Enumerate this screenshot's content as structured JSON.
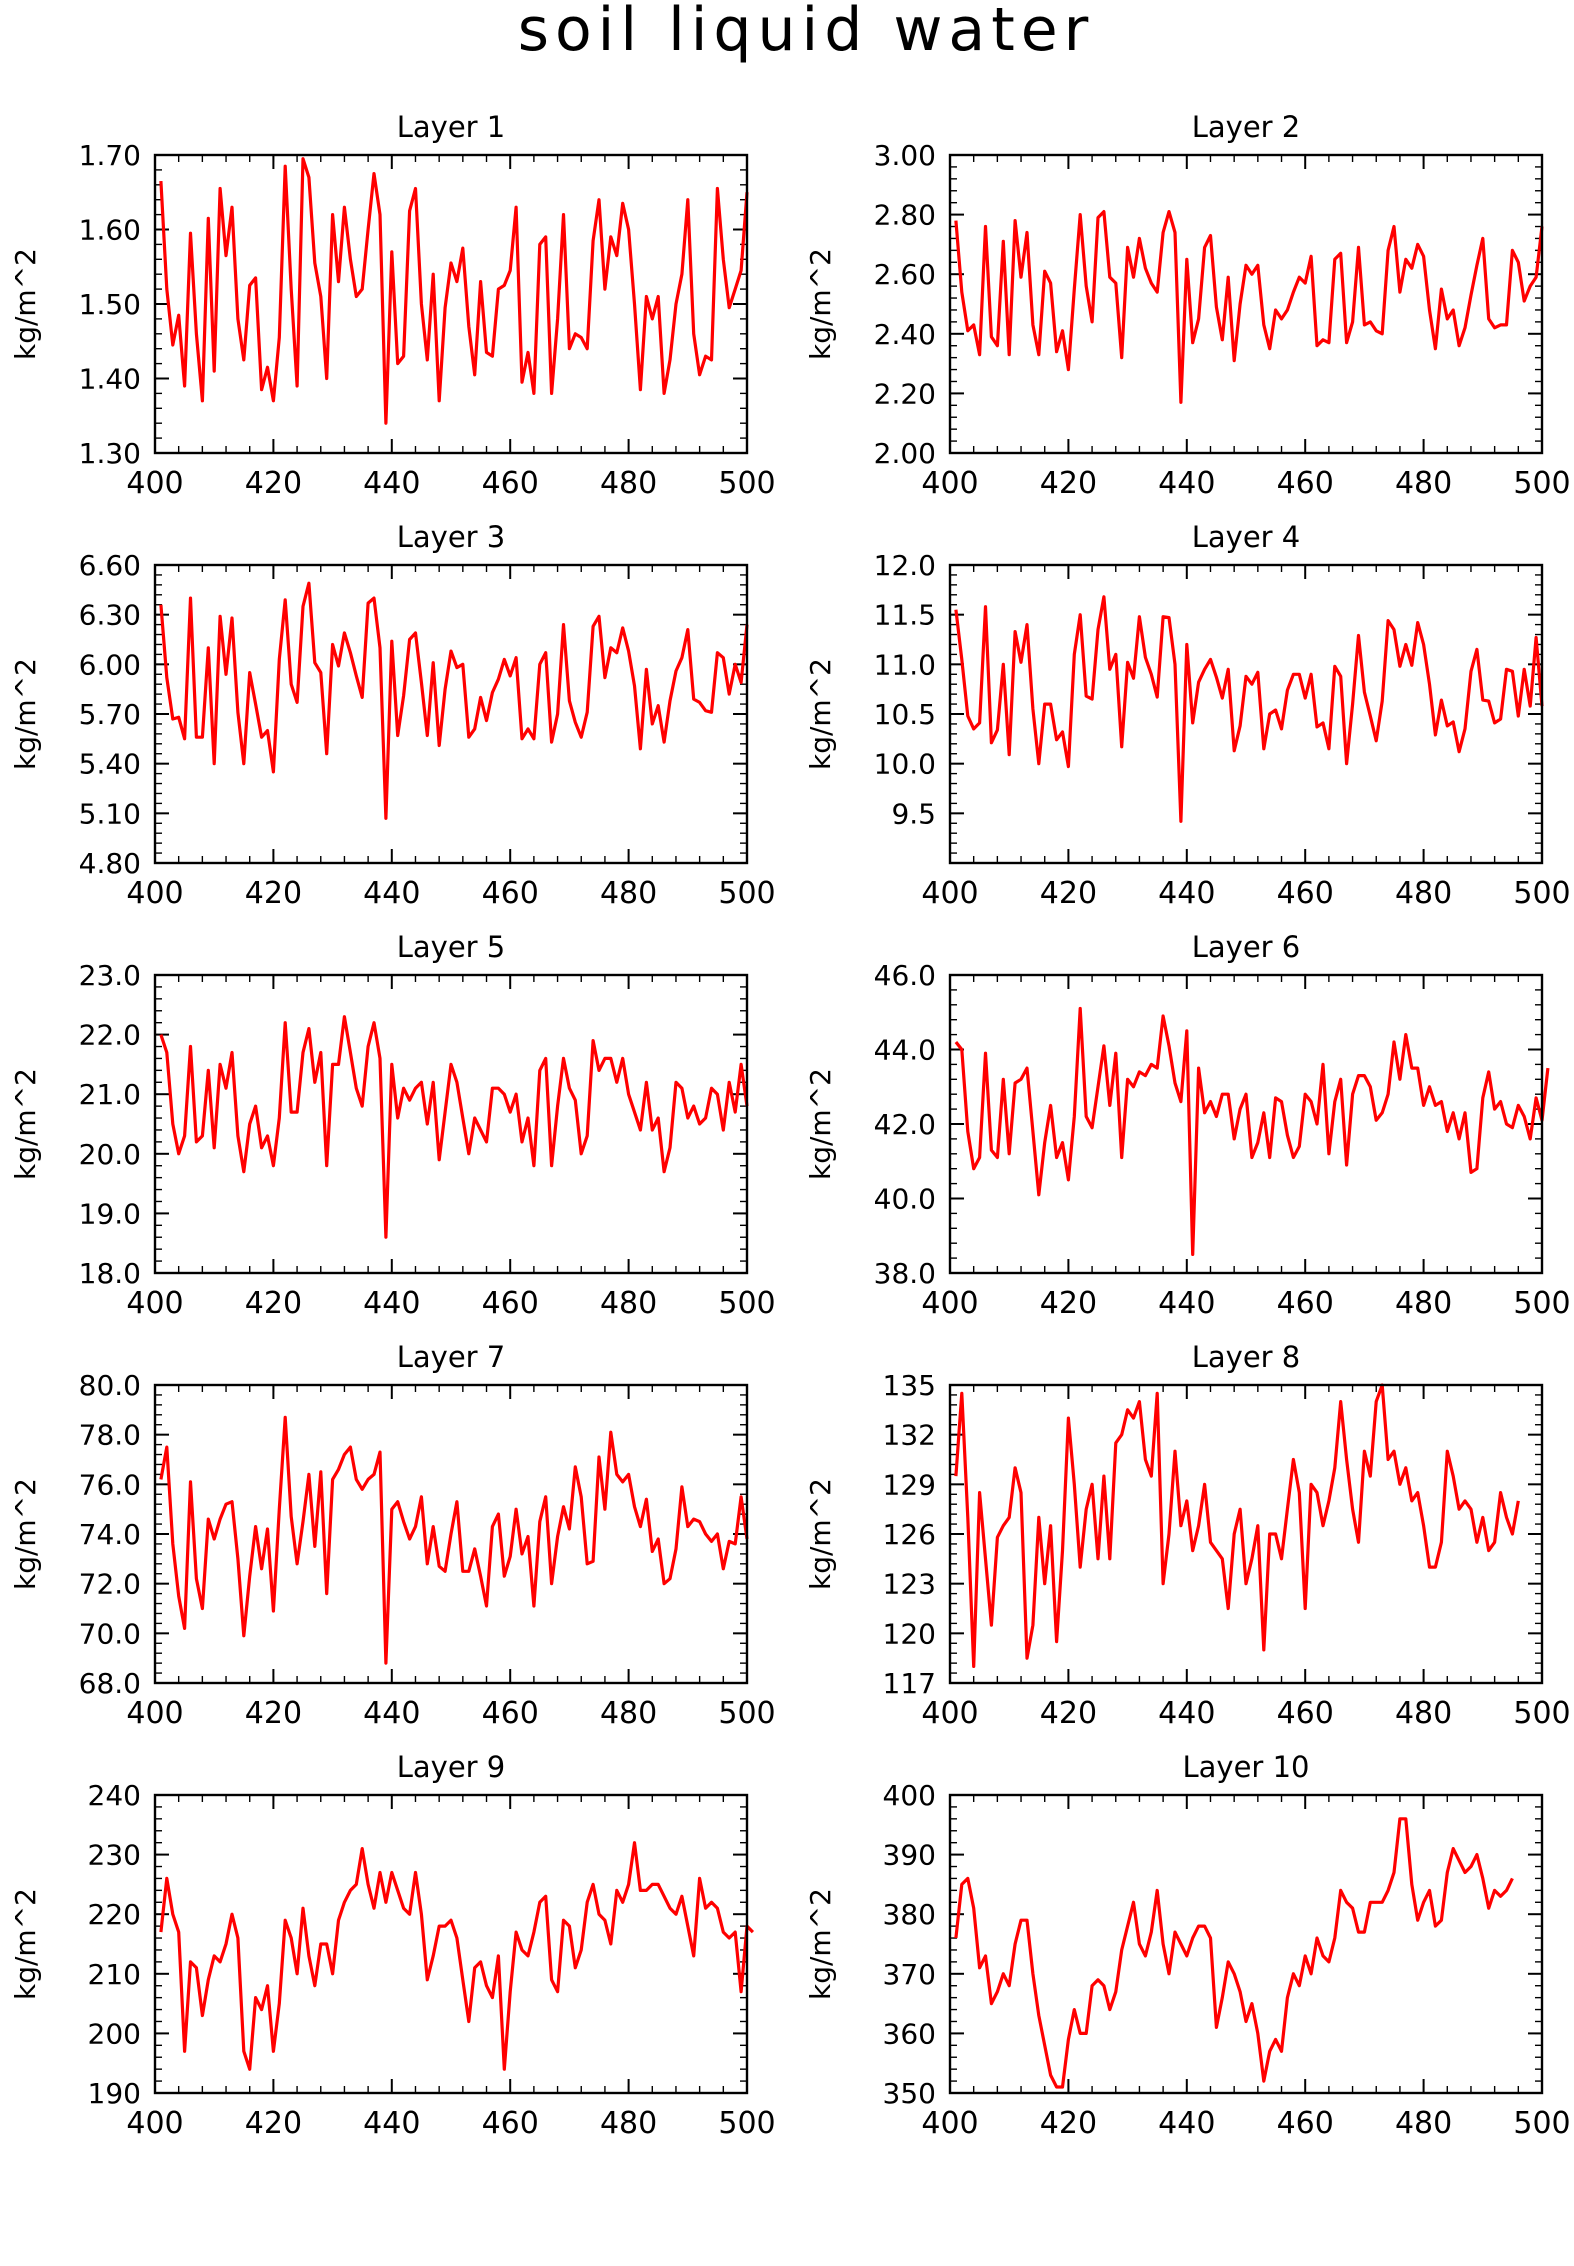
{
  "figure": {
    "title": "soil liquid water"
  },
  "colors": {
    "line": "#ff0000",
    "axis": "#000000",
    "background": "#ffffff"
  },
  "chart_data": [
    {
      "type": "line",
      "title": "Layer 1",
      "ylabel": "kg/m^2",
      "xlabel": "",
      "xlim": [
        400,
        500
      ],
      "ylim": [
        1.3,
        1.7
      ],
      "xticks": [
        400,
        420,
        440,
        460,
        480,
        500
      ],
      "yticks": [
        "1.30",
        "1.40",
        "1.50",
        "1.60",
        "1.70"
      ],
      "x_start": 401,
      "values": [
        1.665,
        1.52,
        1.445,
        1.485,
        1.39,
        1.595,
        1.46,
        1.37,
        1.615,
        1.41,
        1.655,
        1.565,
        1.63,
        1.48,
        1.425,
        1.525,
        1.535,
        1.385,
        1.415,
        1.37,
        1.455,
        1.685,
        1.52,
        1.39,
        1.695,
        1.67,
        1.555,
        1.51,
        1.4,
        1.62,
        1.53,
        1.63,
        1.56,
        1.51,
        1.52,
        1.6,
        1.675,
        1.62,
        1.34,
        1.57,
        1.42,
        1.43,
        1.625,
        1.655,
        1.5,
        1.425,
        1.54,
        1.37,
        1.495,
        1.555,
        1.53,
        1.575,
        1.47,
        1.405,
        1.53,
        1.435,
        1.43,
        1.52,
        1.525,
        1.545,
        1.63,
        1.395,
        1.435,
        1.38,
        1.58,
        1.59,
        1.38,
        1.48,
        1.62,
        1.44,
        1.46,
        1.455,
        1.44,
        1.585,
        1.64,
        1.52,
        1.59,
        1.565,
        1.635,
        1.6,
        1.5,
        1.385,
        1.51,
        1.48,
        1.51,
        1.38,
        1.425,
        1.5,
        1.54,
        1.64,
        1.46,
        1.405,
        1.43,
        1.425,
        1.655,
        1.56,
        1.495,
        1.52,
        1.545,
        1.65
      ]
    },
    {
      "type": "line",
      "title": "Layer 2",
      "ylabel": "kg/m^2",
      "xlabel": "",
      "xlim": [
        400,
        500
      ],
      "ylim": [
        2.0,
        3.0
      ],
      "xticks": [
        400,
        420,
        440,
        460,
        480,
        500
      ],
      "yticks": [
        "2.00",
        "2.20",
        "2.40",
        "2.60",
        "2.80",
        "3.00"
      ],
      "x_start": 401,
      "values": [
        2.78,
        2.54,
        2.41,
        2.43,
        2.33,
        2.76,
        2.39,
        2.36,
        2.71,
        2.33,
        2.78,
        2.59,
        2.74,
        2.43,
        2.33,
        2.61,
        2.57,
        2.34,
        2.41,
        2.28,
        2.55,
        2.8,
        2.56,
        2.44,
        2.79,
        2.81,
        2.59,
        2.57,
        2.32,
        2.69,
        2.59,
        2.72,
        2.62,
        2.57,
        2.54,
        2.74,
        2.81,
        2.74,
        2.17,
        2.65,
        2.37,
        2.45,
        2.69,
        2.73,
        2.49,
        2.38,
        2.59,
        2.31,
        2.5,
        2.63,
        2.6,
        2.63,
        2.43,
        2.35,
        2.48,
        2.45,
        2.48,
        2.54,
        2.59,
        2.57,
        2.66,
        2.36,
        2.38,
        2.37,
        2.65,
        2.67,
        2.37,
        2.44,
        2.69,
        2.43,
        2.44,
        2.41,
        2.4,
        2.68,
        2.76,
        2.54,
        2.65,
        2.62,
        2.7,
        2.66,
        2.48,
        2.35,
        2.55,
        2.45,
        2.48,
        2.36,
        2.42,
        2.53,
        2.63,
        2.72,
        2.45,
        2.42,
        2.43,
        2.43,
        2.68,
        2.64,
        2.51,
        2.56,
        2.59,
        2.76
      ]
    },
    {
      "type": "line",
      "title": "Layer 3",
      "ylabel": "kg/m^2",
      "xlabel": "",
      "xlim": [
        400,
        500
      ],
      "ylim": [
        4.8,
        6.6
      ],
      "xticks": [
        400,
        420,
        440,
        460,
        480,
        500
      ],
      "yticks": [
        "4.80",
        "5.10",
        "5.40",
        "5.70",
        "6.00",
        "6.30",
        "6.60"
      ],
      "x_start": 401,
      "values": [
        6.36,
        5.92,
        5.67,
        5.68,
        5.55,
        6.4,
        5.56,
        5.56,
        6.1,
        5.4,
        6.29,
        5.94,
        6.28,
        5.71,
        5.4,
        5.95,
        5.76,
        5.56,
        5.6,
        5.35,
        6.03,
        6.39,
        5.88,
        5.77,
        6.35,
        6.49,
        6.01,
        5.95,
        5.46,
        6.12,
        5.99,
        6.19,
        6.07,
        5.93,
        5.8,
        6.37,
        6.4,
        6.1,
        5.07,
        6.14,
        5.57,
        5.81,
        6.15,
        6.19,
        5.89,
        5.57,
        6.01,
        5.51,
        5.85,
        6.08,
        5.98,
        6.0,
        5.56,
        5.61,
        5.8,
        5.66,
        5.83,
        5.91,
        6.03,
        5.93,
        6.04,
        5.55,
        5.61,
        5.55,
        6.0,
        6.07,
        5.53,
        5.7,
        6.24,
        5.78,
        5.65,
        5.56,
        5.71,
        6.23,
        6.29,
        5.92,
        6.1,
        6.07,
        6.22,
        6.08,
        5.87,
        5.49,
        5.97,
        5.64,
        5.75,
        5.53,
        5.78,
        5.96,
        6.04,
        6.21,
        5.79,
        5.77,
        5.72,
        5.71,
        6.07,
        6.04,
        5.82,
        6.0,
        5.89,
        6.24
      ]
    },
    {
      "type": "line",
      "title": "Layer 4",
      "ylabel": "kg/m^2",
      "xlabel": "",
      "xlim": [
        400,
        500
      ],
      "ylim": [
        9.0,
        12.0
      ],
      "xticks": [
        400,
        420,
        440,
        460,
        480,
        500
      ],
      "yticks": [
        "9.5",
        "10.0",
        "10.5",
        "11.0",
        "11.5",
        "12.0"
      ],
      "x_start": 401,
      "values": [
        11.55,
        11.05,
        10.48,
        10.35,
        10.41,
        11.58,
        10.21,
        10.34,
        11.0,
        10.09,
        11.33,
        11.02,
        11.4,
        10.55,
        10.0,
        10.6,
        10.6,
        10.24,
        10.32,
        9.97,
        11.1,
        11.5,
        10.68,
        10.65,
        11.35,
        11.68,
        10.95,
        11.1,
        10.17,
        11.02,
        10.86,
        11.48,
        11.07,
        10.9,
        10.67,
        11.48,
        11.47,
        11.0,
        9.42,
        11.2,
        10.41,
        10.82,
        10.95,
        11.05,
        10.87,
        10.66,
        10.95,
        10.13,
        10.38,
        10.88,
        10.8,
        10.92,
        10.15,
        10.5,
        10.54,
        10.35,
        10.74,
        10.9,
        10.9,
        10.66,
        10.9,
        10.37,
        10.41,
        10.15,
        10.98,
        10.88,
        10.0,
        10.6,
        11.29,
        10.72,
        10.48,
        10.23,
        10.63,
        11.44,
        11.35,
        10.98,
        11.2,
        10.99,
        11.42,
        11.2,
        10.8,
        10.29,
        10.64,
        10.38,
        10.42,
        10.12,
        10.35,
        10.93,
        11.15,
        10.64,
        10.63,
        10.41,
        10.45,
        10.95,
        10.93,
        10.48,
        10.95,
        10.58,
        11.27,
        10.58
      ]
    },
    {
      "type": "line",
      "title": "Layer 5",
      "ylabel": "kg/m^2",
      "xlabel": "",
      "xlim": [
        400,
        500
      ],
      "ylim": [
        18.0,
        23.0
      ],
      "xticks": [
        400,
        420,
        440,
        460,
        480,
        500
      ],
      "yticks": [
        "18.0",
        "19.0",
        "20.0",
        "21.0",
        "22.0",
        "23.0"
      ],
      "x_start": 401,
      "values": [
        22.0,
        21.7,
        20.5,
        20.0,
        20.3,
        21.8,
        20.2,
        20.3,
        21.4,
        20.1,
        21.5,
        21.1,
        21.7,
        20.3,
        19.7,
        20.5,
        20.8,
        20.1,
        20.3,
        19.8,
        20.6,
        22.2,
        20.7,
        20.7,
        21.7,
        22.1,
        21.2,
        21.7,
        19.8,
        21.5,
        21.5,
        22.3,
        21.7,
        21.1,
        20.8,
        21.8,
        22.2,
        21.6,
        18.6,
        21.5,
        20.6,
        21.1,
        20.9,
        21.1,
        21.2,
        20.5,
        21.2,
        19.9,
        20.7,
        21.5,
        21.2,
        20.6,
        20.0,
        20.6,
        20.4,
        20.2,
        21.1,
        21.1,
        21.0,
        20.7,
        21.0,
        20.2,
        20.6,
        19.8,
        21.4,
        21.6,
        19.8,
        20.8,
        21.6,
        21.1,
        20.9,
        20.0,
        20.3,
        21.9,
        21.4,
        21.6,
        21.6,
        21.2,
        21.6,
        21.0,
        20.7,
        20.4,
        21.2,
        20.4,
        20.6,
        19.7,
        20.1,
        21.2,
        21.1,
        20.6,
        20.8,
        20.5,
        20.6,
        21.1,
        21.0,
        20.4,
        21.2,
        20.7,
        21.5,
        20.8
      ]
    },
    {
      "type": "line",
      "title": "Layer 6",
      "ylabel": "kg/m^2",
      "xlabel": "",
      "xlim": [
        400,
        500
      ],
      "ylim": [
        38.0,
        46.0
      ],
      "xticks": [
        400,
        420,
        440,
        460,
        480,
        500
      ],
      "yticks": [
        "38.0",
        "40.0",
        "42.0",
        "44.0",
        "46.0"
      ],
      "x_start": 401,
      "values": [
        44.2,
        44.0,
        41.8,
        40.8,
        41.1,
        43.9,
        41.3,
        41.1,
        43.2,
        41.2,
        43.1,
        43.2,
        43.5,
        41.8,
        40.1,
        41.5,
        42.5,
        41.1,
        41.5,
        40.5,
        42.2,
        45.1,
        42.2,
        41.9,
        43.0,
        44.1,
        42.5,
        43.9,
        41.1,
        43.2,
        43.0,
        43.4,
        43.3,
        43.6,
        43.5,
        44.9,
        44.1,
        43.1,
        42.6,
        44.5,
        38.5,
        43.5,
        42.3,
        42.6,
        42.2,
        42.8,
        42.8,
        41.6,
        42.4,
        42.8,
        41.1,
        41.5,
        42.3,
        41.1,
        42.7,
        42.6,
        41.7,
        41.1,
        41.4,
        42.8,
        42.6,
        42.0,
        43.6,
        41.2,
        42.6,
        43.2,
        40.9,
        42.8,
        43.3,
        43.3,
        43.0,
        42.1,
        42.3,
        42.8,
        44.2,
        43.2,
        44.4,
        43.5,
        43.5,
        42.5,
        43.0,
        42.5,
        42.6,
        41.8,
        42.3,
        41.6,
        42.3,
        40.7,
        40.8,
        42.7,
        43.4,
        42.4,
        42.6,
        42.0,
        41.9,
        42.5,
        42.2,
        41.6,
        42.7,
        42.1,
        43.5
      ]
    },
    {
      "type": "line",
      "title": "Layer 7",
      "ylabel": "kg/m^2",
      "xlabel": "",
      "xlim": [
        400,
        500
      ],
      "ylim": [
        68.0,
        80.0
      ],
      "xticks": [
        400,
        420,
        440,
        460,
        480,
        500
      ],
      "yticks": [
        "68.0",
        "70.0",
        "72.0",
        "74.0",
        "76.0",
        "78.0",
        "80.0"
      ],
      "x_start": 401,
      "values": [
        76.2,
        77.5,
        73.6,
        71.5,
        70.2,
        76.1,
        72.2,
        71.0,
        74.6,
        73.8,
        74.6,
        75.2,
        75.3,
        73.0,
        69.9,
        72.3,
        74.3,
        72.6,
        74.2,
        70.9,
        75.0,
        78.7,
        74.7,
        72.8,
        74.5,
        76.4,
        73.5,
        76.5,
        71.6,
        76.2,
        76.6,
        77.2,
        77.5,
        76.2,
        75.8,
        76.2,
        76.4,
        77.3,
        68.8,
        75.0,
        75.3,
        74.5,
        73.8,
        74.3,
        75.5,
        72.8,
        74.3,
        72.7,
        72.5,
        74.0,
        75.3,
        72.5,
        72.5,
        73.4,
        72.3,
        71.1,
        74.3,
        74.8,
        72.3,
        73.1,
        75.0,
        73.2,
        73.9,
        71.1,
        74.5,
        75.5,
        72.0,
        73.9,
        75.1,
        74.2,
        76.7,
        75.5,
        72.8,
        72.9,
        77.1,
        75.0,
        78.1,
        76.4,
        76.1,
        76.4,
        75.1,
        74.3,
        75.4,
        73.3,
        73.8,
        72.0,
        72.2,
        73.4,
        75.9,
        74.3,
        74.6,
        74.5,
        74.0,
        73.7,
        74.0,
        72.6,
        73.7,
        73.6,
        75.5,
        73.8
      ]
    },
    {
      "type": "line",
      "title": "Layer 8",
      "ylabel": "kg/m^2",
      "xlabel": "",
      "xlim": [
        400,
        500
      ],
      "ylim": [
        117,
        135
      ],
      "xticks": [
        400,
        420,
        440,
        460,
        480,
        500
      ],
      "yticks": [
        "117",
        "120",
        "123",
        "126",
        "129",
        "132",
        "135"
      ],
      "x_start": 401,
      "values": [
        129.5,
        134.5,
        127.0,
        118.0,
        128.5,
        124.5,
        120.5,
        125.8,
        126.5,
        127.0,
        130.0,
        128.5,
        118.5,
        120.5,
        127.0,
        123.0,
        126.5,
        119.5,
        125.0,
        133.0,
        129.0,
        124.0,
        127.5,
        129.0,
        124.5,
        129.5,
        124.5,
        131.5,
        132.0,
        133.5,
        133.0,
        134.0,
        130.5,
        129.5,
        134.5,
        123.0,
        126.0,
        131.0,
        126.5,
        128.0,
        125.0,
        126.5,
        129.0,
        125.5,
        125.0,
        124.5,
        121.5,
        126.0,
        127.5,
        123.0,
        124.5,
        126.5,
        119.0,
        126.0,
        126.0,
        124.5,
        127.5,
        130.5,
        128.5,
        121.5,
        129.0,
        128.5,
        126.5,
        128.0,
        130.0,
        134.0,
        130.5,
        127.5,
        125.5,
        131.0,
        129.5,
        134.0,
        135.0,
        130.5,
        131.0,
        129.0,
        130.0,
        128.0,
        128.5,
        126.5,
        124.0,
        124.0,
        125.5,
        131.0,
        129.5,
        127.5,
        128.0,
        127.5,
        125.5,
        127.0,
        125.0,
        125.5,
        128.5,
        127.0,
        126.0,
        128.0
      ]
    },
    {
      "type": "line",
      "title": "Layer 9",
      "ylabel": "kg/m^2",
      "xlabel": "",
      "xlim": [
        400,
        500
      ],
      "ylim": [
        190,
        240
      ],
      "xticks": [
        400,
        420,
        440,
        460,
        480,
        500
      ],
      "yticks": [
        "190",
        "200",
        "210",
        "220",
        "230",
        "240"
      ],
      "x_start": 401,
      "values": [
        217,
        226,
        220,
        217,
        197,
        212,
        211,
        203,
        209,
        213,
        212,
        215,
        220,
        216,
        197,
        194,
        206,
        204,
        208,
        197,
        205,
        219,
        216,
        210,
        221,
        213,
        208,
        215,
        215,
        210,
        219,
        222,
        224,
        225,
        231,
        225,
        221,
        227,
        222,
        227,
        224,
        221,
        220,
        227,
        220,
        209,
        213,
        218,
        218,
        219,
        216,
        209,
        202,
        211,
        212,
        208,
        206,
        213,
        194,
        207,
        217,
        214,
        213,
        217,
        222,
        223,
        209,
        207,
        219,
        218,
        211,
        214,
        222,
        225,
        220,
        219,
        215,
        224,
        222,
        225,
        232,
        224,
        224,
        225,
        225,
        223,
        221,
        220,
        223,
        218,
        213,
        226,
        221,
        222,
        221,
        217,
        216,
        217,
        207,
        218,
        217
      ]
    },
    {
      "type": "line",
      "title": "Layer 10",
      "ylabel": "kg/m^2",
      "xlabel": "",
      "xlim": [
        400,
        500
      ],
      "ylim": [
        350,
        400
      ],
      "xticks": [
        400,
        420,
        440,
        460,
        480,
        500
      ],
      "yticks": [
        "350",
        "360",
        "370",
        "380",
        "390",
        "400"
      ],
      "x_start": 401,
      "values": [
        376,
        385,
        386,
        381,
        371,
        373,
        365,
        367,
        370,
        368,
        375,
        379,
        379,
        370,
        363,
        358,
        353,
        351,
        351,
        359,
        364,
        360,
        360,
        368,
        369,
        368,
        364,
        367,
        374,
        378,
        382,
        375,
        373,
        377,
        384,
        375,
        370,
        377,
        375,
        373,
        376,
        378,
        378,
        376,
        361,
        366,
        372,
        370,
        367,
        362,
        365,
        360,
        352,
        357,
        359,
        357,
        366,
        370,
        368,
        373,
        370,
        376,
        373,
        372,
        376,
        384,
        382,
        381,
        377,
        377,
        382,
        382,
        382,
        384,
        387,
        396,
        396,
        385,
        379,
        382,
        384,
        378,
        379,
        387,
        391,
        389,
        387,
        388,
        390,
        386,
        381,
        384,
        383,
        384,
        386
      ]
    }
  ]
}
